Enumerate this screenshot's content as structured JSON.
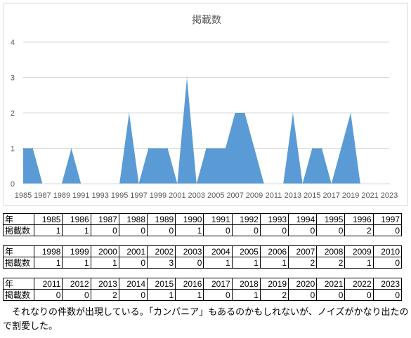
{
  "chart_data": {
    "type": "area",
    "title": "掲載数",
    "xlabel": "",
    "ylabel": "",
    "ylim": [
      0,
      4
    ],
    "yticks": [
      0,
      1,
      2,
      3,
      4
    ],
    "xticks": [
      "1985",
      "1987",
      "1989",
      "1991",
      "1993",
      "1995",
      "1997",
      "1999",
      "2001",
      "2003",
      "2005",
      "2007",
      "2009",
      "2011",
      "2013",
      "2015",
      "2017",
      "2019",
      "2021",
      "2023"
    ],
    "x": [
      1985,
      1986,
      1987,
      1988,
      1989,
      1990,
      1991,
      1992,
      1993,
      1994,
      1995,
      1996,
      1997,
      1998,
      1999,
      2000,
      2001,
      2002,
      2003,
      2004,
      2005,
      2006,
      2007,
      2008,
      2009,
      2010,
      2011,
      2012,
      2013,
      2014,
      2015,
      2016,
      2017,
      2018,
      2019,
      2020,
      2021,
      2022,
      2023
    ],
    "values": [
      1,
      1,
      0,
      0,
      0,
      1,
      0,
      0,
      0,
      0,
      0,
      2,
      0,
      1,
      1,
      1,
      0,
      3,
      0,
      1,
      1,
      1,
      2,
      2,
      1,
      0,
      0,
      0,
      2,
      0,
      1,
      1,
      0,
      1,
      2,
      0,
      0,
      0,
      0
    ],
    "grid": true,
    "color": "#5b9bd5"
  },
  "table": {
    "row_labels": {
      "year": "年",
      "count": "掲載数"
    },
    "blocks": [
      {
        "years": [
          "1985",
          "1986",
          "1987",
          "1988",
          "1989",
          "1990",
          "1991",
          "1992",
          "1993",
          "1994",
          "1995",
          "1996",
          "1997"
        ],
        "counts": [
          "1",
          "1",
          "0",
          "0",
          "0",
          "1",
          "0",
          "0",
          "0",
          "0",
          "0",
          "2",
          "0"
        ]
      },
      {
        "years": [
          "1998",
          "1999",
          "2000",
          "2001",
          "2002",
          "2003",
          "2004",
          "2005",
          "2006",
          "2007",
          "2008",
          "2009",
          "2010"
        ],
        "counts": [
          "1",
          "1",
          "1",
          "0",
          "3",
          "0",
          "1",
          "1",
          "1",
          "2",
          "2",
          "1",
          "0"
        ]
      },
      {
        "years": [
          "2011",
          "2012",
          "2013",
          "2014",
          "2015",
          "2016",
          "2017",
          "2018",
          "2019",
          "2020",
          "2021",
          "2022",
          "2023"
        ],
        "counts": [
          "0",
          "0",
          "2",
          "0",
          "1",
          "1",
          "0",
          "1",
          "2",
          "0",
          "0",
          "0",
          "0"
        ]
      }
    ]
  },
  "caption": "それなりの件数が出現している。「カンパニア」もあるのかもしれないが、ノイズがかなり出たので割愛した。"
}
